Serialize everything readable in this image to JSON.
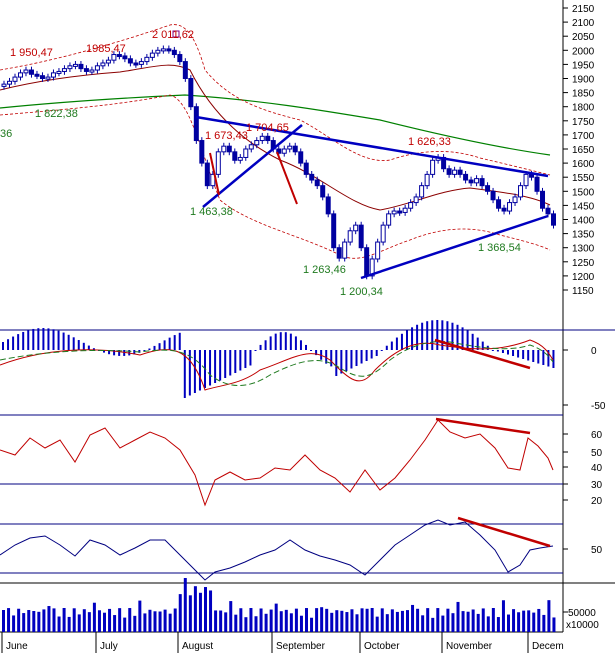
{
  "chart_data": {
    "type": "candlestick",
    "x_months": [
      "June",
      "July",
      "August",
      "September",
      "October",
      "November",
      "Decem"
    ],
    "main": {
      "ylim": [
        1150,
        2150
      ],
      "yticks": [
        2150,
        2100,
        2050,
        2000,
        1950,
        1900,
        1850,
        1800,
        1750,
        1700,
        1650,
        1600,
        1550,
        1500,
        1450,
        1400,
        1350,
        1300,
        1250,
        1200,
        1150
      ],
      "close_path": [
        1880,
        1890,
        1905,
        1920,
        1930,
        1915,
        1910,
        1900,
        1905,
        1920,
        1925,
        1935,
        1945,
        1950,
        1935,
        1925,
        1930,
        1945,
        1955,
        1965,
        1985,
        1980,
        1970,
        1955,
        1950,
        1960,
        1975,
        1990,
        2000,
        2005,
        2000,
        1985,
        1960,
        1900,
        1800,
        1680,
        1600,
        1520,
        1560,
        1640,
        1660,
        1640,
        1610,
        1620,
        1650,
        1665,
        1680,
        1695,
        1680,
        1650,
        1635,
        1650,
        1660,
        1640,
        1600,
        1560,
        1540,
        1520,
        1480,
        1420,
        1300,
        1263,
        1320,
        1360,
        1380,
        1300,
        1200,
        1260,
        1320,
        1380,
        1420,
        1430,
        1425,
        1440,
        1460,
        1480,
        1520,
        1560,
        1610,
        1620,
        1580,
        1560,
        1575,
        1560,
        1540,
        1530,
        1545,
        1520,
        1500,
        1470,
        1440,
        1430,
        1460,
        1480,
        1520,
        1560,
        1550,
        1500,
        1440,
        1420,
        1380
      ],
      "annotations": [
        {
          "text": "1 950,47",
          "color": "red"
        },
        {
          "text": "1985,47",
          "color": "red"
        },
        {
          "text": "2 011,62",
          "color": "red"
        },
        {
          "text": "1 822,38",
          "color": "green"
        },
        {
          "text": "36",
          "color": "green"
        },
        {
          "text": "1 673,43",
          "color": "red"
        },
        {
          "text": "1 704,65",
          "color": "red"
        },
        {
          "text": "1 626,33",
          "color": "red"
        },
        {
          "text": "1 463,38",
          "color": "green"
        },
        {
          "text": "1 263,46",
          "color": "green"
        },
        {
          "text": "1 200,34",
          "color": "green"
        },
        {
          "text": "1 368,54",
          "color": "green"
        }
      ]
    },
    "macd": {
      "yticks": [
        0,
        -50
      ]
    },
    "rsi": {
      "yticks": [
        60,
        50,
        40,
        30,
        20
      ],
      "bands": [
        70,
        30
      ]
    },
    "stoch": {
      "yticks": [
        50
      ]
    },
    "volume": {
      "yticks": [
        "50000"
      ],
      "unit": "x10000"
    }
  },
  "colors": {
    "candle": "#0000a0",
    "red": "#c00000",
    "green": "#1f7a1f",
    "grid": "#000080",
    "ma": "#008000"
  }
}
